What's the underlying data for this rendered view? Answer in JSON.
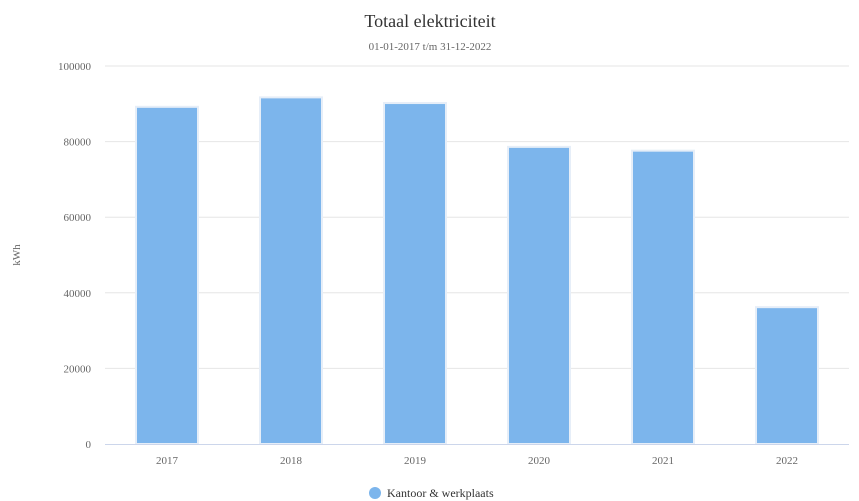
{
  "chart_data": {
    "type": "bar",
    "title": "Totaal elektriciteit",
    "subtitle": "01-01-2017 t/m 31-12-2022",
    "xlabel": "",
    "ylabel": "kWh",
    "categories": [
      "2017",
      "2018",
      "2019",
      "2020",
      "2021",
      "2022"
    ],
    "series": [
      {
        "name": "Kantoor & werkplaats",
        "values": [
          89200,
          91700,
          90200,
          78600,
          77600,
          36200
        ],
        "color": "#7cb5ec"
      }
    ],
    "ylim": [
      0,
      100000
    ],
    "yticks": [
      "0",
      "20000",
      "40000",
      "60000",
      "80000",
      "100000"
    ],
    "grid": true,
    "legend_position": "bottom"
  }
}
